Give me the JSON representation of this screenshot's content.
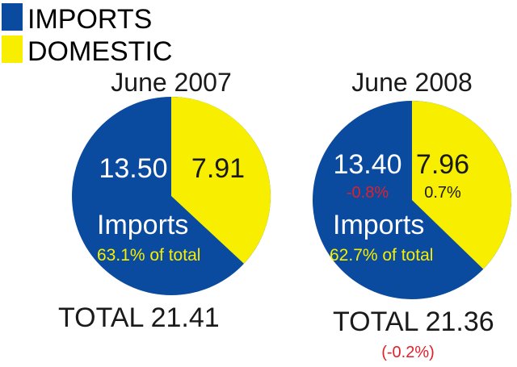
{
  "colors": {
    "imports": "#0a4ba0",
    "domestic": "#f7ee00",
    "on_imports_text": "#ffffff",
    "on_domestic_text": "#1a1a1a",
    "share_text": "#f7ee00",
    "negative": "#e0202a"
  },
  "legend": [
    {
      "label": "IMPORTS",
      "color": "#0a4ba0"
    },
    {
      "label": "DOMESTIC",
      "color": "#f7ee00"
    }
  ],
  "chart_data": [
    {
      "type": "pie",
      "title": "June 2007",
      "categories": [
        "IMPORTS",
        "DOMESTIC"
      ],
      "values": [
        13.5,
        7.91
      ],
      "value_labels": [
        "13.50",
        "7.91"
      ],
      "change_labels": [
        "",
        ""
      ],
      "series_label": "Imports",
      "share_label": "63.1% of total",
      "total_label": "TOTAL 21.41",
      "total_change_label": ""
    },
    {
      "type": "pie",
      "title": "June 2008",
      "categories": [
        "IMPORTS",
        "DOMESTIC"
      ],
      "values": [
        13.4,
        7.96
      ],
      "value_labels": [
        "13.40",
        "7.96"
      ],
      "change_labels": [
        "-0.8%",
        "0.7%"
      ],
      "series_label": "Imports",
      "share_label": "62.7% of total",
      "total_label": "TOTAL 21.36",
      "total_change_label": "(-0.2%)"
    }
  ]
}
